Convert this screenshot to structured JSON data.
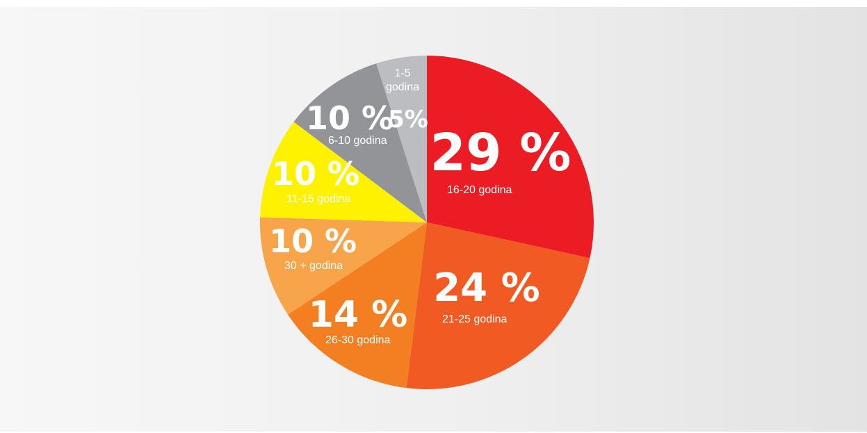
{
  "chart_data": {
    "type": "pie",
    "slices": [
      {
        "label": "16-20 godina",
        "value": 29,
        "value_label": "29 %",
        "color": "#ec1c24"
      },
      {
        "label": "21-25 godina",
        "value": 24,
        "value_label": "24 %",
        "color": "#f15a22"
      },
      {
        "label": "26-30 godina",
        "value": 14,
        "value_label": "14 %",
        "color": "#f37f22"
      },
      {
        "label": "30 + godina",
        "value": 10,
        "value_label": "10 %",
        "color": "#f7a44a"
      },
      {
        "label": "11-15 godina",
        "value": 10,
        "value_label": "10 %",
        "color": "#fff200"
      },
      {
        "label": "6-10 godina",
        "value": 10,
        "value_label": "10 %",
        "color": "#929497"
      },
      {
        "label_lines": [
          "1-5",
          "godina"
        ],
        "value": 5,
        "value_label": "5%",
        "color": "#bbbdc0"
      }
    ]
  }
}
